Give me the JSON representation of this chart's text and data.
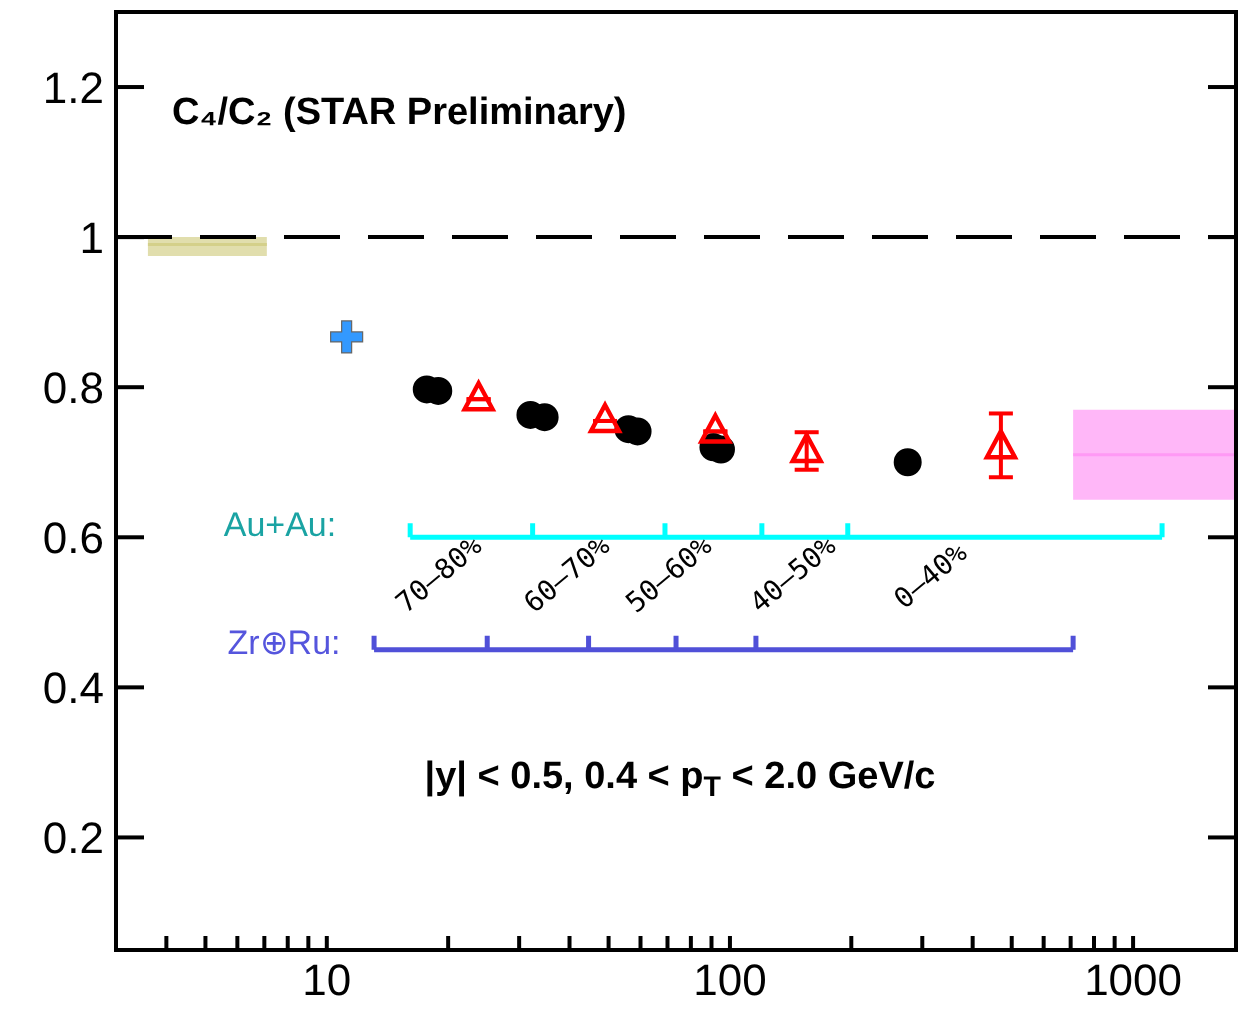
{
  "chart_data": {
    "type": "scatter",
    "title": "C₄/C₂ (STAR Preliminary)",
    "log": "x",
    "grid": false,
    "legend": false,
    "xlim": [
      3,
      1800
    ],
    "xticks": [
      {
        "value": 4,
        "label": null
      },
      {
        "value": 5,
        "label": null
      },
      {
        "value": 6,
        "label": null
      },
      {
        "value": 7,
        "label": null
      },
      {
        "value": 8,
        "label": null
      },
      {
        "value": 9,
        "label": null
      },
      10,
      {
        "value": 20,
        "label": null
      },
      {
        "value": 30,
        "label": null
      },
      {
        "value": 40,
        "label": null
      },
      {
        "value": 50,
        "label": null
      },
      {
        "value": 60,
        "label": null
      },
      {
        "value": 70,
        "label": null
      },
      {
        "value": 80,
        "label": null
      },
      {
        "value": 90,
        "label": null
      },
      100,
      {
        "value": 200,
        "label": null
      },
      {
        "value": 300,
        "label": null
      },
      {
        "value": 400,
        "label": null
      },
      {
        "value": 500,
        "label": null
      },
      {
        "value": 600,
        "label": null
      },
      {
        "value": 700,
        "label": null
      },
      {
        "value": 800,
        "label": null
      },
      {
        "value": 900,
        "label": null
      },
      1000
    ],
    "ylim": [
      0.05,
      1.3
    ],
    "yticks": [
      0.2,
      0.4,
      0.6,
      0.8,
      1,
      1.2
    ],
    "ref_lines": [
      {
        "axis": "y",
        "value": 1,
        "color": "#000000",
        "line_style": "dashed"
      }
    ],
    "series": [
      {
        "type": "line",
        "color": "#d4d08a",
        "x": [
          3.6,
          7.1
        ],
        "lower": [
          0.975,
          0.975
        ],
        "upper": [
          1.0,
          1.0
        ],
        "values": [
          0.99,
          0.99
        ]
      },
      {
        "type": "line",
        "color": "#ff99f5",
        "x": [
          710,
          1800
        ],
        "lower": [
          0.65,
          0.65
        ],
        "upper": [
          0.77,
          0.77
        ],
        "values": [
          0.71,
          0.71
        ]
      },
      {
        "color": "#3399ff",
        "marker": "cross",
        "x": [
          11.2
        ],
        "values": [
          0.867
        ]
      },
      {
        "color": "#000000",
        "marker": "circle",
        "x": [
          17.7,
          18.9,
          32,
          34.7,
          56,
          59,
          91,
          95,
          276
        ],
        "values": [
          0.797,
          0.795,
          0.763,
          0.76,
          0.744,
          0.741,
          0.72,
          0.717,
          0.7
        ]
      },
      {
        "color": "#ff0000",
        "marker": "triangle",
        "x": [
          23.8,
          49,
          92,
          155,
          470
        ],
        "values": [
          0.784,
          0.755,
          0.741,
          0.715,
          0.72
        ],
        "errors": [
          null,
          null,
          null,
          0.025,
          [
            0.68,
            0.765
          ]
        ]
      }
    ],
    "annotations": [
      "Au+Au:",
      "Zr⊕Ru:",
      "|y| < 0.5, 0.4 < p$_{T}$ < 2.0 GeV/c",
      "70–80%",
      "60–70%",
      "50–60%",
      "40–50%",
      "0–40%"
    ]
  }
}
